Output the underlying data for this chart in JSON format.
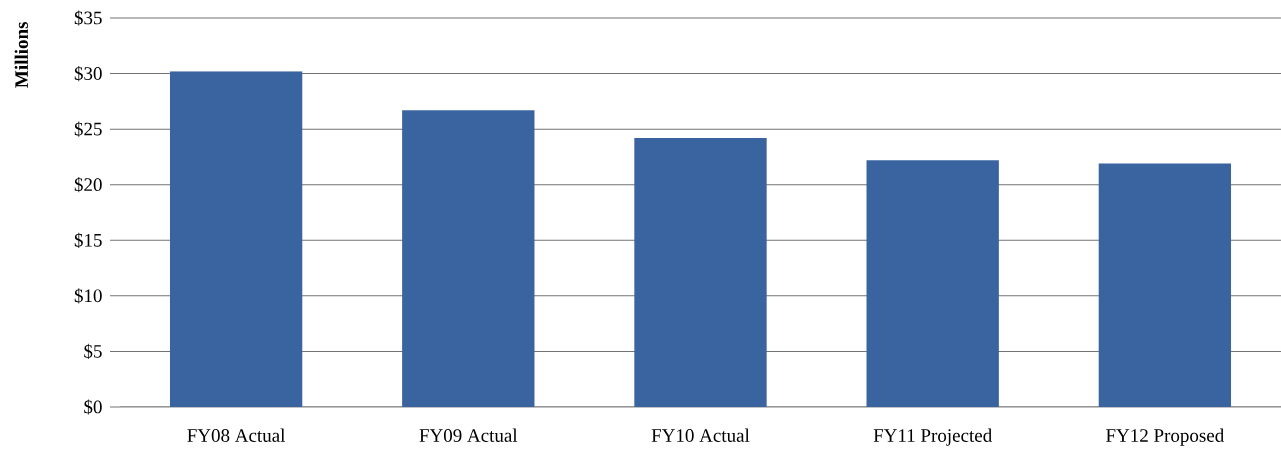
{
  "chart_data": {
    "type": "bar",
    "ylabel": "Millions",
    "categories": [
      "FY08 Actual",
      "FY09 Actual",
      "FY10 Actual",
      "FY11 Projected",
      "FY12 Proposed"
    ],
    "values": [
      30.2,
      26.7,
      24.2,
      22.2,
      21.9
    ],
    "color": "#3a64a0",
    "ylim": [
      0,
      35
    ],
    "yticks": [
      {
        "value": 0,
        "label": "$0"
      },
      {
        "value": 5,
        "label": "$5"
      },
      {
        "value": 10,
        "label": "$10"
      },
      {
        "value": 15,
        "label": "$15"
      },
      {
        "value": 20,
        "label": "$20"
      },
      {
        "value": 25,
        "label": "$25"
      },
      {
        "value": 30,
        "label": "$30"
      },
      {
        "value": 35,
        "label": "$35"
      }
    ],
    "grid": "y"
  }
}
